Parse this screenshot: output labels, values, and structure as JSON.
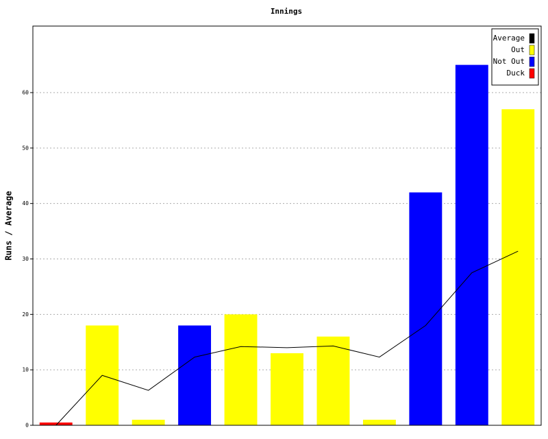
{
  "chart_data": {
    "type": "bar",
    "title": "Innings",
    "y_label": "Runs / Average",
    "categories": [
      null,
      null,
      null,
      null,
      null,
      null,
      null,
      null,
      null,
      null,
      null
    ],
    "series": [
      {
        "name": "Average",
        "type": "line",
        "color": "#000000",
        "values": [
          0,
          9,
          6.3,
          12.3,
          14.2,
          14,
          14.3,
          12.3,
          18,
          27.5,
          31.4
        ]
      },
      {
        "name": "Out",
        "type": "bar",
        "color": "#ffff00",
        "values": [
          null,
          18,
          1,
          null,
          20,
          13,
          16,
          1,
          null,
          null,
          57
        ]
      },
      {
        "name": "Not Out",
        "type": "bar",
        "color": "#0000ff",
        "values": [
          null,
          null,
          null,
          18,
          null,
          null,
          null,
          null,
          42,
          65,
          null
        ]
      },
      {
        "name": "Duck",
        "type": "bar",
        "color": "#ff0000",
        "values": [
          0.5,
          null,
          null,
          null,
          null,
          null,
          null,
          null,
          null,
          null,
          null
        ]
      }
    ],
    "ylim": [
      0,
      72
    ],
    "yticks": [
      0,
      10,
      20,
      30,
      40,
      50,
      60
    ],
    "grid": true,
    "legend": "upper right"
  }
}
